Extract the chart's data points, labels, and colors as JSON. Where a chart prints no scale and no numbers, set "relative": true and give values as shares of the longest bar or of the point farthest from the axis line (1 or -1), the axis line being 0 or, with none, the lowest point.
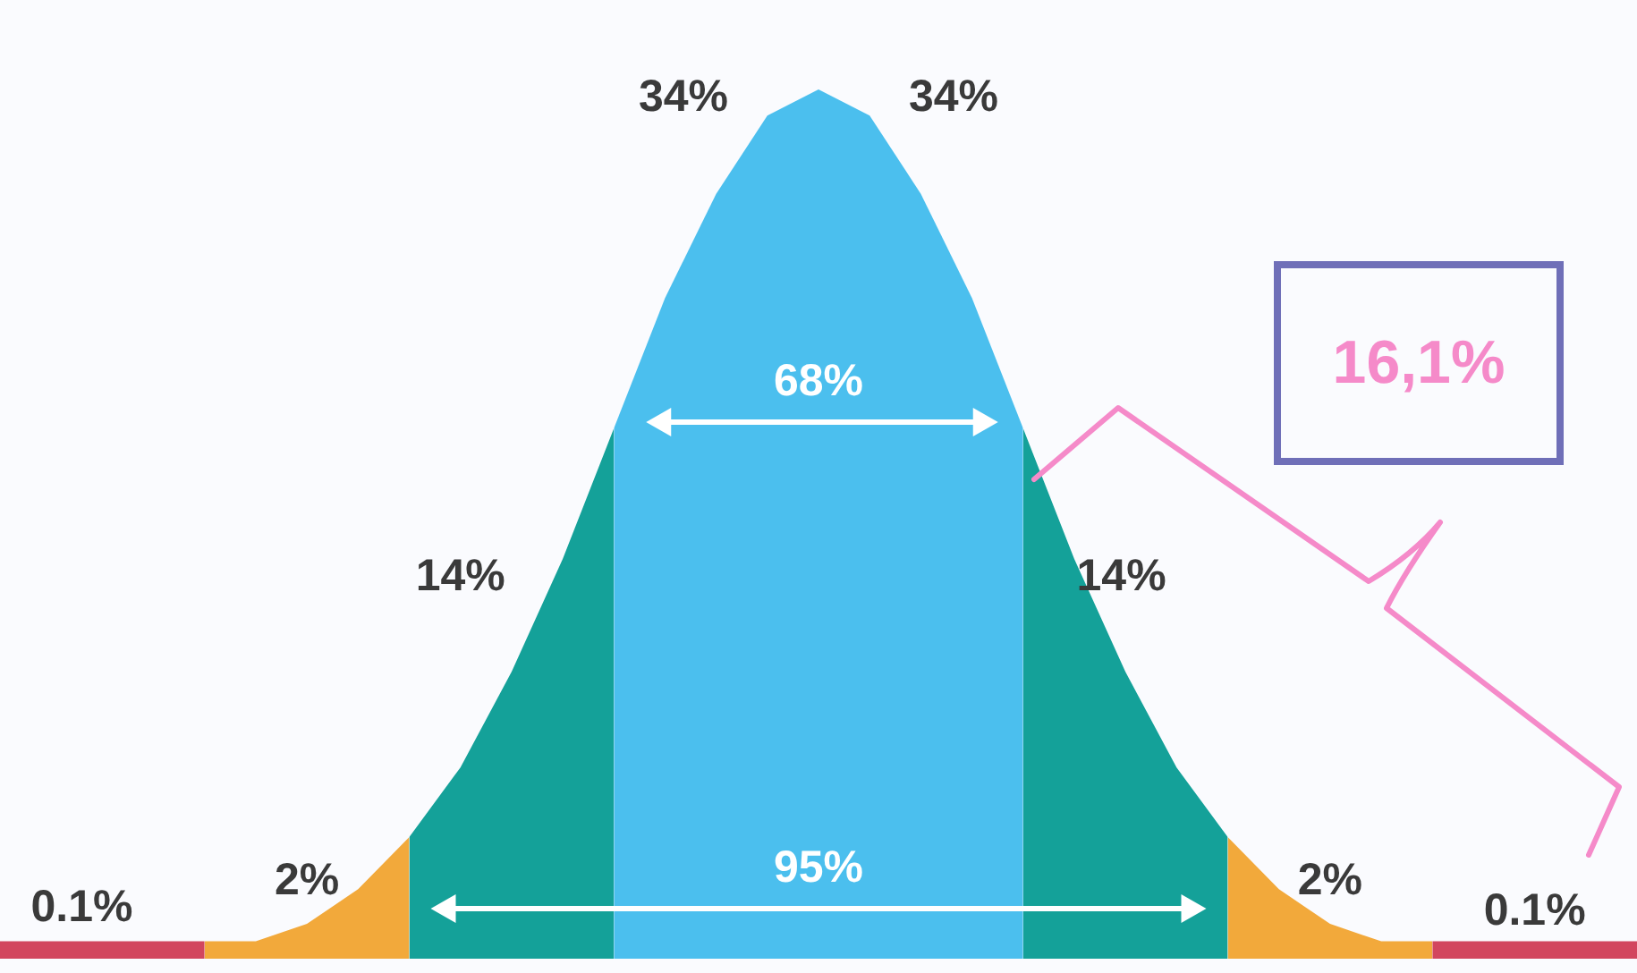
{
  "chart_data": {
    "type": "area",
    "relative": true,
    "categories": [
      null,
      null,
      null,
      null,
      null,
      null,
      null,
      null,
      null,
      null,
      null,
      null,
      null,
      null,
      null,
      null,
      null,
      null,
      null,
      null,
      null,
      null,
      null,
      null,
      null,
      null,
      null,
      null,
      null,
      null,
      null,
      null,
      null
    ],
    "series": [
      {
        "color": "#d2465e",
        "values": [
          0.02,
          0.02,
          0.02,
          0.02,
          0.02,
          null,
          null,
          null,
          null,
          null,
          null,
          null,
          null,
          null,
          null,
          null,
          null,
          null,
          null,
          null,
          null,
          null,
          null,
          null,
          null,
          null,
          null,
          null,
          null,
          null,
          null,
          null,
          null
        ]
      },
      {
        "color": "#f2a93b",
        "values": [
          null,
          null,
          null,
          null,
          0.02,
          0.02,
          0.04,
          0.08,
          0.14,
          null,
          null,
          null,
          null,
          null,
          null,
          null,
          null,
          null,
          null,
          null,
          null,
          null,
          null,
          null,
          null,
          null,
          null,
          null,
          null,
          null,
          null,
          null,
          null
        ]
      },
      {
        "color": "#14a199",
        "values": [
          null,
          null,
          null,
          null,
          null,
          null,
          null,
          null,
          0.14,
          0.22,
          0.33,
          0.46,
          0.61,
          null,
          null,
          null,
          null,
          null,
          null,
          null,
          null,
          null,
          null,
          null,
          null,
          null,
          null,
          null,
          null,
          null,
          null,
          null,
          null
        ]
      },
      {
        "color": "#4bbfee",
        "values": [
          null,
          null,
          null,
          null,
          null,
          null,
          null,
          null,
          null,
          null,
          null,
          null,
          0.61,
          0.76,
          0.88,
          0.97,
          1,
          null,
          null,
          null,
          null,
          null,
          null,
          null,
          null,
          null,
          null,
          null,
          null,
          null,
          null,
          null,
          null
        ]
      },
      {
        "color": "#4bbfee",
        "values": [
          null,
          null,
          null,
          null,
          null,
          null,
          null,
          null,
          null,
          null,
          null,
          null,
          null,
          null,
          null,
          null,
          1,
          0.97,
          0.88,
          0.76,
          0.61,
          null,
          null,
          null,
          null,
          null,
          null,
          null,
          null,
          null,
          null,
          null,
          null
        ]
      },
      {
        "color": "#14a199",
        "values": [
          null,
          null,
          null,
          null,
          null,
          null,
          null,
          null,
          null,
          null,
          null,
          null,
          null,
          null,
          null,
          null,
          null,
          null,
          null,
          null,
          0.61,
          0.46,
          0.33,
          0.22,
          0.14,
          null,
          null,
          null,
          null,
          null,
          null,
          null,
          null
        ]
      },
      {
        "color": "#f2a93b",
        "values": [
          null,
          null,
          null,
          null,
          null,
          null,
          null,
          null,
          null,
          null,
          null,
          null,
          null,
          null,
          null,
          null,
          null,
          null,
          null,
          null,
          null,
          null,
          null,
          null,
          0.14,
          0.08,
          0.04,
          0.02,
          0.02,
          null,
          null,
          null,
          null
        ]
      },
      {
        "color": "#d2465e",
        "values": [
          null,
          null,
          null,
          null,
          null,
          null,
          null,
          null,
          null,
          null,
          null,
          null,
          null,
          null,
          null,
          null,
          null,
          null,
          null,
          null,
          null,
          null,
          null,
          null,
          null,
          null,
          null,
          null,
          0.02,
          0.02,
          0.02,
          0.02,
          0.02
        ]
      }
    ],
    "annotations": [
      "34%",
      "34%",
      "68%",
      "14%",
      "14%",
      "95%",
      "2%",
      "2%",
      "0.1%",
      "0.1%",
      "16,1%"
    ]
  }
}
